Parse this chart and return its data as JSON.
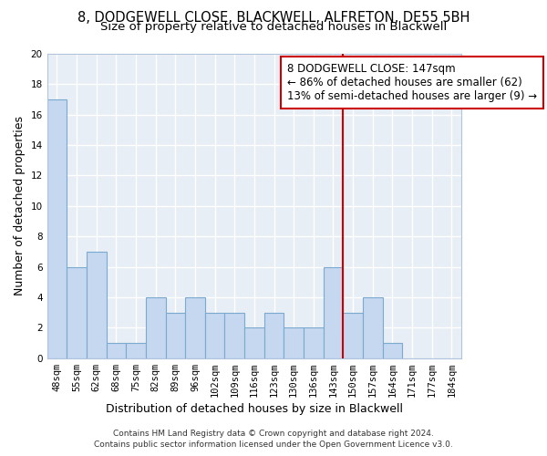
{
  "title": "8, DODGEWELL CLOSE, BLACKWELL, ALFRETON, DE55 5BH",
  "subtitle": "Size of property relative to detached houses in Blackwell",
  "xlabel": "Distribution of detached houses by size in Blackwell",
  "ylabel": "Number of detached properties",
  "bar_labels": [
    "48sqm",
    "55sqm",
    "62sqm",
    "68sqm",
    "75sqm",
    "82sqm",
    "89sqm",
    "96sqm",
    "102sqm",
    "109sqm",
    "116sqm",
    "123sqm",
    "130sqm",
    "136sqm",
    "143sqm",
    "150sqm",
    "157sqm",
    "164sqm",
    "171sqm",
    "177sqm",
    "184sqm"
  ],
  "bar_values": [
    17,
    6,
    7,
    1,
    1,
    4,
    3,
    4,
    3,
    3,
    2,
    3,
    2,
    2,
    6,
    3,
    4,
    1,
    0,
    0,
    0
  ],
  "bar_color": "#c5d8ef",
  "bar_edgecolor": "#7aaad0",
  "vline_x_index": 14,
  "vline_color": "#cc0000",
  "ylim": [
    0,
    20
  ],
  "yticks": [
    0,
    2,
    4,
    6,
    8,
    10,
    12,
    14,
    16,
    18,
    20
  ],
  "annotation_title": "8 DODGEWELL CLOSE: 147sqm",
  "annotation_line1": "← 86% of detached houses are smaller (62)",
  "annotation_line2": "13% of semi-detached houses are larger (9) →",
  "footer_line1": "Contains HM Land Registry data © Crown copyright and database right 2024.",
  "footer_line2": "Contains public sector information licensed under the Open Government Licence v3.0.",
  "plot_bg_color": "#e8eef5",
  "fig_bg_color": "#ffffff",
  "grid_color": "#ffffff",
  "title_fontsize": 10.5,
  "subtitle_fontsize": 9.5,
  "axis_label_fontsize": 9,
  "tick_fontsize": 7.5,
  "annotation_fontsize": 8.5,
  "footer_fontsize": 6.5
}
